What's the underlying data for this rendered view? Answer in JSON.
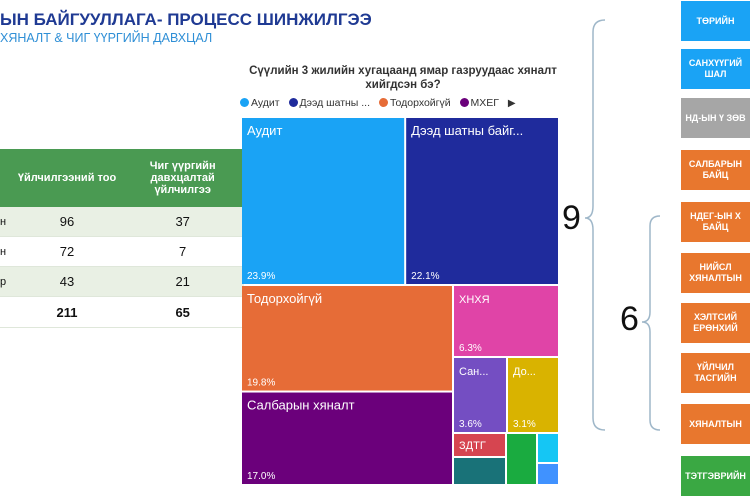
{
  "header": {
    "title": "ЫН БАЙГУУЛЛАГА- ПРОЦЕСС ШИНЖИЛГЭЭ",
    "subtitle": "ХЯНАЛТ & ЧИГ ҮҮРГИЙН ДАВХЦАЛ"
  },
  "table": {
    "col1": "Үйлчилгээний тоо",
    "col2": "Чиг үүргийн давхцалтай үйлчилгээ",
    "rows": [
      {
        "label": "н",
        "v1": "96",
        "v2": "37"
      },
      {
        "label": "н",
        "v1": "72",
        "v2": "7"
      },
      {
        "label": "р",
        "v1": "43",
        "v2": "21"
      },
      {
        "label": "",
        "v1": "211",
        "v2": "65"
      }
    ]
  },
  "chart_data": {
    "type": "treemap",
    "title": "Сүүлийн 3 жилийн хугацаанд ямар газруудаас хяналт хийгдсэн бэ?",
    "legend": [
      "Аудит",
      "Дээд шатны ...",
      "Тодорхойгүй",
      "МХЕГ"
    ],
    "series": [
      {
        "name": "Аудит",
        "label": "Аудит",
        "value": 23.9,
        "pct": "23.9%",
        "color": "#1aa3f5"
      },
      {
        "name": "Дээд шатны байгууллага",
        "label": "Дээд шатны байг...",
        "value": 22.1,
        "pct": "22.1%",
        "color": "#1f2b9c"
      },
      {
        "name": "Тодорхойгүй",
        "label": "Тодорхойгүй",
        "value": 19.8,
        "pct": "19.8%",
        "color": "#e66c37"
      },
      {
        "name": "Салбарын хяналт",
        "label": "Салбарын хяналт",
        "value": 17.0,
        "pct": "17.0%",
        "color": "#6b007b"
      },
      {
        "name": "ХНХЯ",
        "label": "ХНХЯ",
        "value": 6.3,
        "pct": "6.3%",
        "color": "#e044a7"
      },
      {
        "name": "Сан...",
        "label": "Сан...",
        "value": 3.6,
        "pct": "3.6%",
        "color": "#744ec2"
      },
      {
        "name": "До...",
        "label": "До...",
        "value": 3.1,
        "pct": "3.1%",
        "color": "#d9b300"
      },
      {
        "name": "ЗДТГ",
        "label": "ЗДТГ",
        "value": 2.0,
        "pct": "",
        "color": "#d64550"
      },
      {
        "name": "",
        "label": "",
        "value": 0.8,
        "pct": "",
        "color": "#197278"
      },
      {
        "name": "",
        "label": "",
        "value": 0.7,
        "pct": "",
        "color": "#1aab40"
      },
      {
        "name": "",
        "label": "",
        "value": 0.5,
        "pct": "",
        "color": "#15c6f4"
      },
      {
        "name": "",
        "label": "",
        "value": 0.2,
        "pct": "",
        "color": "#4092ff"
      }
    ]
  },
  "right_panel": {
    "count_top": "9",
    "count_bottom": "6",
    "boxes": [
      {
        "label": "ТӨРИЙН",
        "color": "#1aa3f5"
      },
      {
        "label": "САНХҮҮГИЙ ШАЛ",
        "color": "#1aa3f5"
      },
      {
        "label": "НД-ЫН Ү ЗӨВ",
        "color": "#a6a6a6"
      },
      {
        "label": "САЛБАРЫН БАЙЦ",
        "color": "#e8772e"
      },
      {
        "label": "НДЕГ-ЫН Х БАЙЦ",
        "color": "#e8772e"
      },
      {
        "label": "НИЙСЛ ХЯНАЛТЫН",
        "color": "#e8772e"
      },
      {
        "label": "ХЭЛТСИЙ ЕРӨНХИЙ",
        "color": "#e8772e"
      },
      {
        "label": "ҮЙЛЧИЛ ТАСГИЙН",
        "color": "#e8772e"
      },
      {
        "label": "ХЯНАЛТЫН",
        "color": "#e8772e"
      },
      {
        "label": "ТЭТГЭВРИЙН",
        "color": "#3aa843"
      }
    ]
  }
}
